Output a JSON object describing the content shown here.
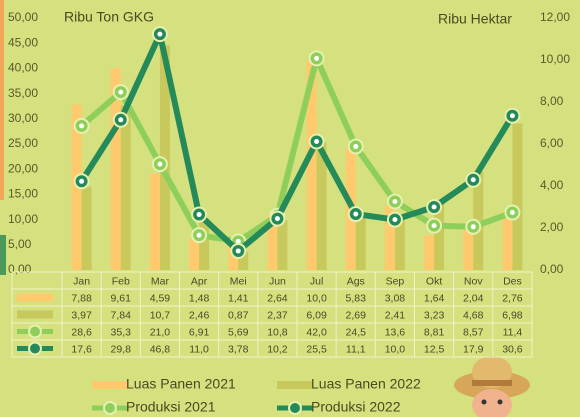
{
  "chart_data": {
    "type": "bar-line",
    "ylabel": "Ribu Ton GKG",
    "y2label": "Ribu Hektar",
    "categories": [
      "Jan",
      "Feb",
      "Mar",
      "Apr",
      "Mei",
      "Jun",
      "Jul",
      "Ags",
      "Sep",
      "Okt",
      "Nov",
      "Des"
    ],
    "ylim": [
      0,
      50
    ],
    "yticks": [
      {
        "value": 0,
        "label": "0,00"
      },
      {
        "value": 5,
        "label": "5,00"
      },
      {
        "value": 10,
        "label": "10,00"
      },
      {
        "value": 15,
        "label": "15,00"
      },
      {
        "value": 20,
        "label": "20,00"
      },
      {
        "value": 25,
        "label": "25,00"
      },
      {
        "value": 30,
        "label": "30,00"
      },
      {
        "value": 35,
        "label": "35,00"
      },
      {
        "value": 40,
        "label": "40,00"
      },
      {
        "value": 45,
        "label": "45,00"
      },
      {
        "value": 50,
        "label": "50,00"
      }
    ],
    "y2lim": [
      0,
      12
    ],
    "y2ticks": [
      {
        "value": 0,
        "label": "0,00"
      },
      {
        "value": 2,
        "label": "2,00"
      },
      {
        "value": 4,
        "label": "4,00"
      },
      {
        "value": 6,
        "label": "6,00"
      },
      {
        "value": 8,
        "label": "8,00"
      },
      {
        "value": 10,
        "label": "10,00"
      },
      {
        "value": 12,
        "label": "12,00"
      }
    ],
    "series": [
      {
        "name": "Luas Panen 2021",
        "kind": "bar",
        "axis": "y2",
        "color": "#ffca6e",
        "values": [
          7.88,
          9.61,
          4.59,
          1.48,
          1.41,
          2.64,
          10.0,
          5.83,
          3.08,
          1.64,
          2.04,
          2.76
        ],
        "value_labels": [
          "7,88",
          "9,61",
          "4,59",
          "1,48",
          "1,41",
          "2,64",
          "10,0",
          "5,83",
          "3,08",
          "1,64",
          "2,04",
          "2,76"
        ]
      },
      {
        "name": "Luas Panen 2022",
        "kind": "bar",
        "axis": "y2",
        "color": "#c8c95c",
        "values": [
          3.97,
          7.84,
          10.7,
          2.46,
          0.87,
          2.37,
          6.09,
          2.69,
          2.41,
          3.23,
          4.68,
          6.98
        ],
        "value_labels": [
          "3,97",
          "7,84",
          "10,7",
          "2,46",
          "0,87",
          "2,37",
          "6,09",
          "2,69",
          "2,41",
          "3,23",
          "4,68",
          "6,98"
        ]
      },
      {
        "name": "Produksi 2021",
        "kind": "line",
        "color": "#8ecf5c",
        "values": [
          28.6,
          35.3,
          21.0,
          6.91,
          5.69,
          10.8,
          42.0,
          24.5,
          13.6,
          8.81,
          8.57,
          11.4
        ],
        "value_labels": [
          "28,6",
          "35,3",
          "21,0",
          "6,91",
          "5,69",
          "10,8",
          "42,0",
          "24,5",
          "13,6",
          "8,81",
          "8,57",
          "11,4"
        ]
      },
      {
        "name": "Produksi 2022",
        "kind": "line",
        "color": "#248a5a",
        "values": [
          17.6,
          29.8,
          46.8,
          11.0,
          3.78,
          10.2,
          25.5,
          11.1,
          10.0,
          12.5,
          17.9,
          30.6
        ],
        "value_labels": [
          "17,6",
          "29,8",
          "46,8",
          "11,0",
          "3,78",
          "10,2",
          "25,5",
          "11,1",
          "10,0",
          "12,5",
          "17,9",
          "30,6"
        ]
      }
    ]
  }
}
